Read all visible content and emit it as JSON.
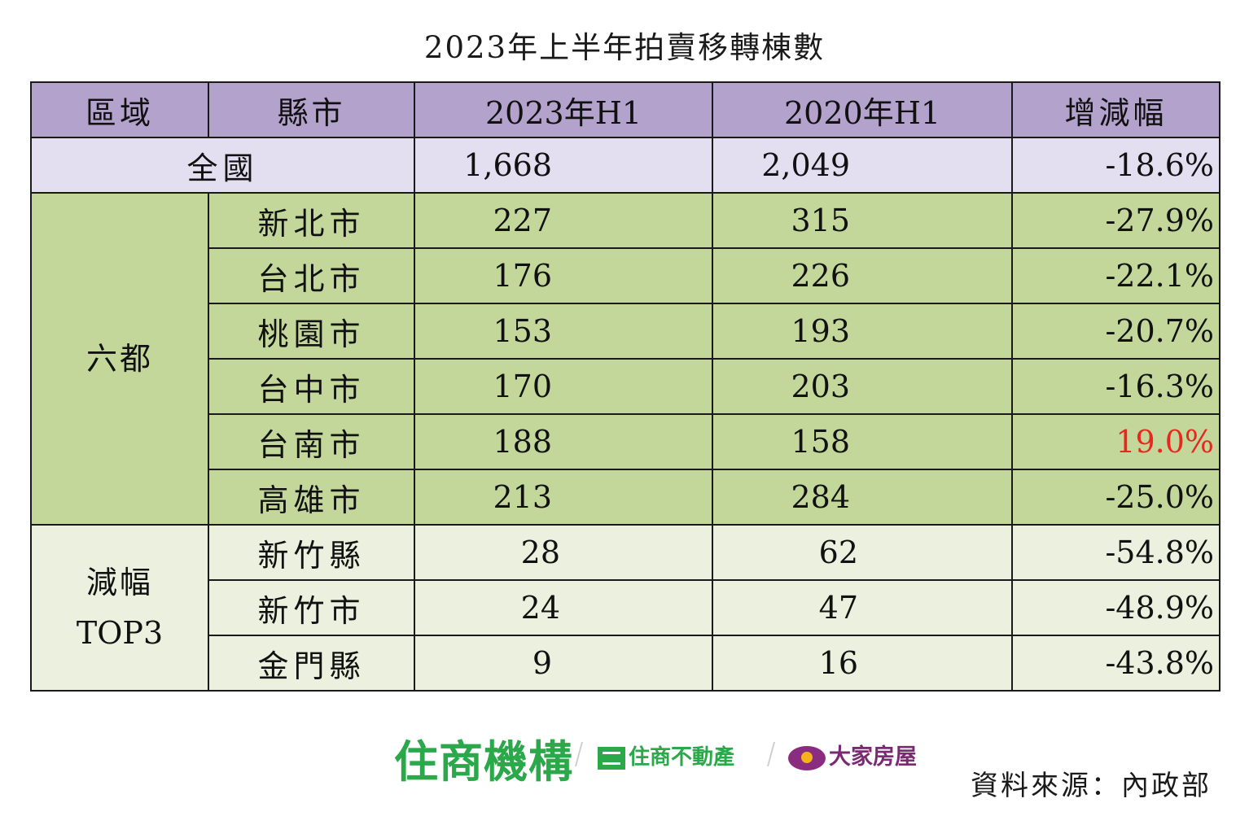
{
  "title": "2023年上半年拍賣移轉棟數",
  "table": {
    "headers": [
      "區域",
      "縣市",
      "2023年H1",
      "2020年H1",
      "增減幅"
    ],
    "national": {
      "label": "全國",
      "h1_2023": "1,668",
      "h1_2020": "2,049",
      "change": "-18.6%"
    },
    "groups": [
      {
        "label": "六都",
        "rows": [
          {
            "city": "新北市",
            "h1_2023": "227",
            "h1_2020": "315",
            "change": "-27.9%"
          },
          {
            "city": "台北市",
            "h1_2023": "176",
            "h1_2020": "226",
            "change": "-22.1%"
          },
          {
            "city": "桃園市",
            "h1_2023": "153",
            "h1_2020": "193",
            "change": "-20.7%"
          },
          {
            "city": "台中市",
            "h1_2023": "170",
            "h1_2020": "203",
            "change": "-16.3%"
          },
          {
            "city": "台南市",
            "h1_2023": "188",
            "h1_2020": "158",
            "change": "19.0%"
          },
          {
            "city": "高雄市",
            "h1_2023": "213",
            "h1_2020": "284",
            "change": "-25.0%"
          }
        ]
      },
      {
        "label_line1": "減幅",
        "label_line2": "TOP3",
        "rows": [
          {
            "city": "新竹縣",
            "h1_2023": "28",
            "h1_2020": "62",
            "change": "-54.8%"
          },
          {
            "city": "新竹市",
            "h1_2023": "24",
            "h1_2020": "47",
            "change": "-48.9%"
          },
          {
            "city": "金門縣",
            "h1_2023": "9",
            "h1_2020": "16",
            "change": "-43.8%"
          }
        ]
      }
    ]
  },
  "logos": {
    "main": "住商機構",
    "brand2": "住商不動產",
    "brand3": "大家房屋"
  },
  "source": "資料來源：內政部",
  "colors": {
    "header_bg": "#b3a2cc",
    "national_bg": "#e3dff0",
    "six_cities_bg": "#c4d79b",
    "top3_bg": "#ebf1de",
    "positive_change": "#e8281e",
    "logo_green": "#2aa84a"
  }
}
